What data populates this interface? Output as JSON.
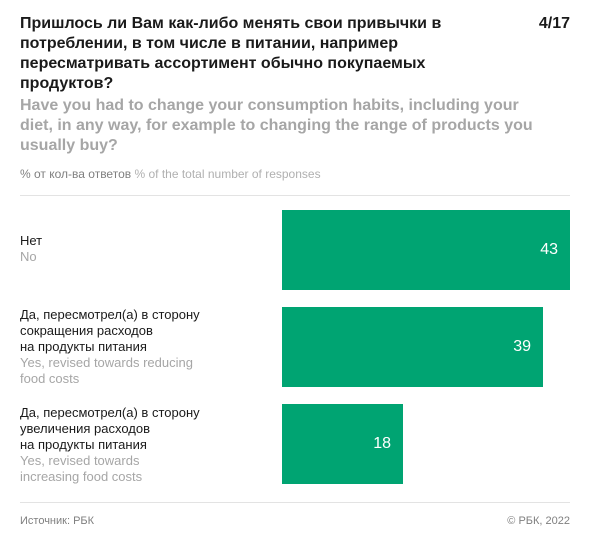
{
  "page_number": "4/17",
  "title_ru": "Пришлось ли Вам как-либо менять свои привычки в потреблении, в том числе в питании, например пересматривать ассортимент обычно покупаемых продуктов?",
  "title_en": "Have you had to change your consumption habits, including your diet, in any way, for example to changing the range of products you usually buy?",
  "units_ru": "% от кол-ва ответов",
  "units_en": "% of the total number of responses",
  "footer": {
    "source": "Источник: РБК",
    "copyright": "© РБК, 2022"
  },
  "colors": {
    "bar": "#00a472",
    "text": "#1a1a1a",
    "muted": "#a6a6a6"
  },
  "chart_data": {
    "type": "bar",
    "orientation": "horizontal",
    "categories": [
      {
        "label_ru": "Нет",
        "label_en": "No"
      },
      {
        "label_ru": "Да, пересмотрел(а) в сторону\nсокращения расходов\nна продукты питания",
        "label_en": "Yes, revised towards reducing\nfood costs"
      },
      {
        "label_ru": "Да, пересмотрел(а) в сторону\nувеличения расходов\nна продукты питания",
        "label_en": "Yes, revised towards\nincreasing food costs"
      }
    ],
    "values": [
      43,
      39,
      18
    ],
    "value_labels": [
      "43",
      "39",
      "18"
    ],
    "xlim": [
      0,
      43
    ],
    "grid": false,
    "legend": "none"
  }
}
